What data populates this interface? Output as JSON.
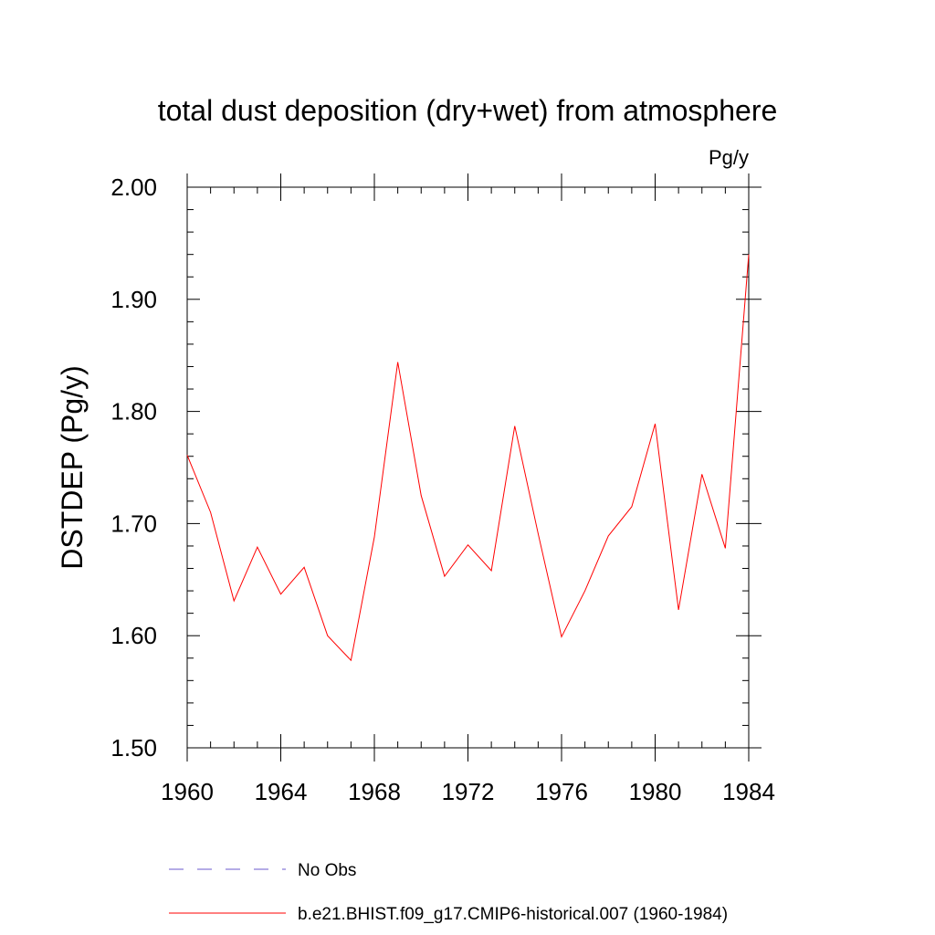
{
  "chart_data": {
    "type": "line",
    "title": "total dust deposition (dry+wet) from atmosphere",
    "units_label": "Pg/y",
    "ylabel": "DSTDEP  (Pg/y)",
    "xlabel": "",
    "xlim": [
      1960,
      1984
    ],
    "ylim": [
      1.5,
      2.0
    ],
    "x_ticks": [
      1960,
      1964,
      1968,
      1972,
      1976,
      1980,
      1984
    ],
    "x_tick_labels": [
      "1960",
      "1964",
      "1968",
      "1972",
      "1976",
      "1980",
      "1984"
    ],
    "y_ticks": [
      1.5,
      1.6,
      1.7,
      1.8,
      1.9,
      2.0
    ],
    "y_tick_labels": [
      "1.50",
      "1.60",
      "1.70",
      "1.80",
      "1.90",
      "2.00"
    ],
    "grid": false,
    "legend_position": "bottom",
    "x": [
      1960,
      1961,
      1962,
      1963,
      1964,
      1965,
      1966,
      1967,
      1968,
      1969,
      1970,
      1971,
      1972,
      1973,
      1974,
      1975,
      1976,
      1977,
      1978,
      1979,
      1980,
      1981,
      1982,
      1983,
      1984
    ],
    "series": [
      {
        "name": "b.e21.BHIST.f09_g17.CMIP6-historical.007 (1960-1984)",
        "color": "#ff0000",
        "style": "solid",
        "values": [
          1.761,
          1.71,
          1.631,
          1.679,
          1.637,
          1.661,
          1.6,
          1.578,
          1.688,
          1.844,
          1.725,
          1.653,
          1.681,
          1.658,
          1.787,
          1.691,
          1.599,
          1.64,
          1.689,
          1.715,
          1.789,
          1.623,
          1.744,
          1.678,
          1.94
        ]
      }
    ],
    "legend": [
      {
        "label": "No Obs",
        "color": "#6a5acd",
        "style": "dashed"
      },
      {
        "label": "b.e21.BHIST.f09_g17.CMIP6-historical.007 (1960-1984)",
        "color": "#ff0000",
        "style": "solid"
      }
    ]
  }
}
